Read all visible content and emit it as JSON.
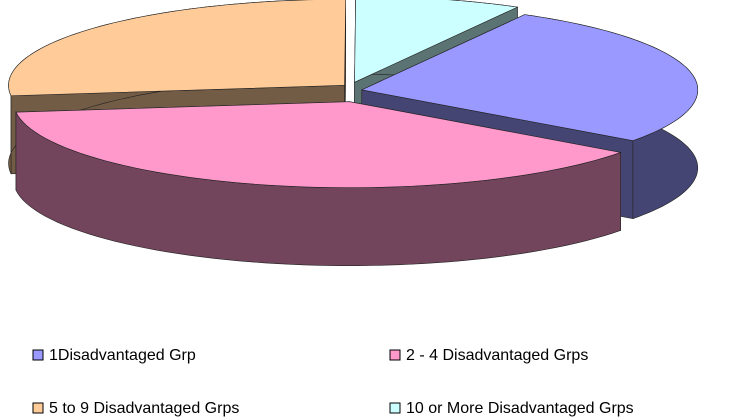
{
  "chart_data": {
    "type": "pie",
    "categories": [
      "1Disadvantaged Grp",
      "2 - 4 Disadvantaged Grps",
      "5 to 9 Disadvantaged Grps",
      "10 or More Disadvantaged Grps"
    ],
    "values": [
      27,
      38,
      27,
      8
    ],
    "colors": [
      "#9999ff",
      "#ff99cc",
      "#ffcc99",
      "#ccffff"
    ],
    "legend": "bottom"
  }
}
